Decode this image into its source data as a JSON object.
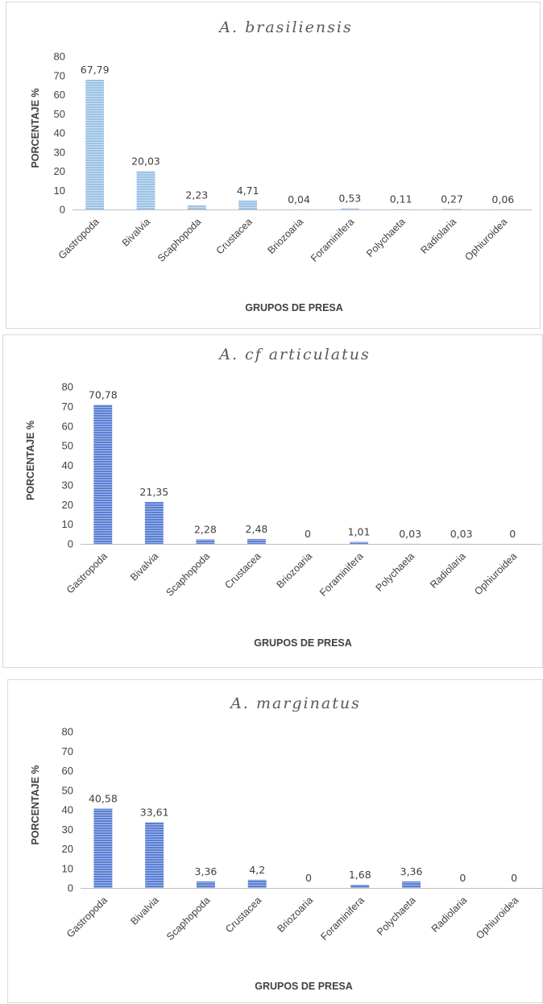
{
  "chart_data": [
    {
      "type": "bar",
      "title": "A. brasiliensis",
      "xlabel": "GRUPOS DE PRESA",
      "ylabel": "PORCENTAJE %",
      "categories": [
        "Gastropoda",
        "Bivalvia",
        "Scaphopoda",
        "Crustacea",
        "Briozoaria",
        "Foraminifera",
        "Polychaeta",
        "Radiolaria",
        "Ophiuroidea"
      ],
      "values": [
        67.79,
        20.03,
        2.23,
        4.71,
        0.04,
        0.53,
        0.11,
        0.27,
        0.06
      ],
      "data_labels": [
        "67,79",
        "20,03",
        "2,23",
        "4,71",
        "0,04",
        "0,53",
        "0,11",
        "0,27",
        "0,06"
      ],
      "ylim": [
        0,
        80
      ],
      "yticks": [
        "0",
        "10",
        "20",
        "30",
        "40",
        "50",
        "60",
        "70",
        "80"
      ],
      "bar_color": "#9dc3e6",
      "grid": false,
      "legend": "none"
    },
    {
      "type": "bar",
      "title": "A. cf articulatus",
      "xlabel": "GRUPOS DE PRESA",
      "ylabel": "PORCENTAJE %",
      "categories": [
        "Gastropoda",
        "Bivalvia",
        "Scaphopoda",
        "Crustacea",
        "Briozoaria",
        "Foraminifera",
        "Polychaeta",
        "Radiolaria",
        "Ophiuroidea"
      ],
      "values": [
        70.78,
        21.35,
        2.28,
        2.48,
        0,
        1.01,
        0.03,
        0.03,
        0
      ],
      "data_labels": [
        "70,78",
        "21,35",
        "2,28",
        "2,48",
        "0",
        "1,01",
        "0,03",
        "0,03",
        "0"
      ],
      "ylim": [
        0,
        80
      ],
      "yticks": [
        "0",
        "10",
        "20",
        "30",
        "40",
        "50",
        "60",
        "70",
        "80"
      ],
      "bar_color": "#5b7fd4",
      "grid": false,
      "legend": "none"
    },
    {
      "type": "bar",
      "title": "A. marginatus",
      "xlabel": "GRUPOS DE PRESA",
      "ylabel": "PORCENTAJE %",
      "categories": [
        "Gastropoda",
        "Bivalvia",
        "Scaphopoda",
        "Crustacea",
        "Briozoaria",
        "Foraminifera",
        "Polychaeta",
        "Radiolaria",
        "Ophiuroidea"
      ],
      "values": [
        40.58,
        33.61,
        3.36,
        4.2,
        0,
        1.68,
        3.36,
        0,
        0
      ],
      "data_labels": [
        "40,58",
        "33,61",
        "3,36",
        "4,2",
        "0",
        "1,68",
        "3,36",
        "0",
        "0"
      ],
      "ylim": [
        0,
        80
      ],
      "yticks": [
        "0",
        "10",
        "20",
        "30",
        "40",
        "50",
        "60",
        "70",
        "80"
      ],
      "bar_color": "#5b7fd4",
      "grid": false,
      "legend": "none"
    }
  ]
}
